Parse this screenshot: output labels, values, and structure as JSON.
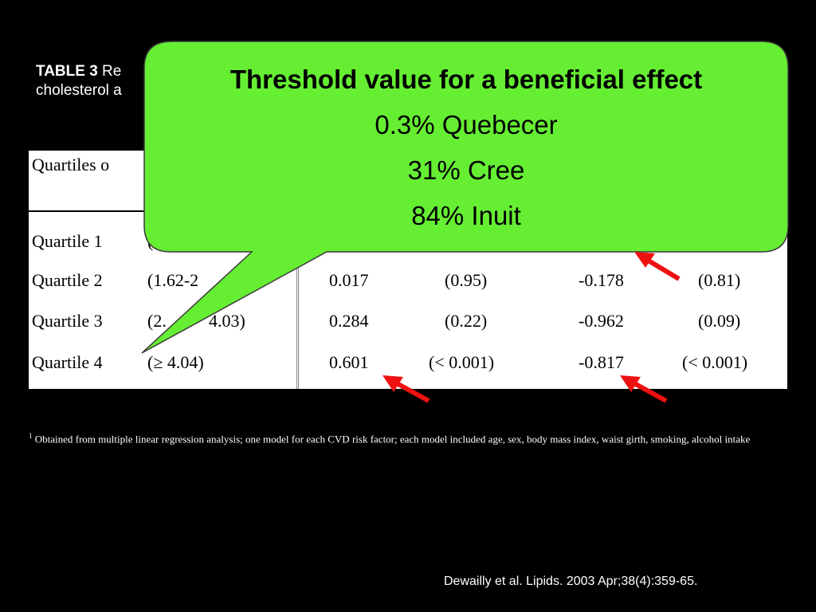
{
  "heading": {
    "label": "TABLE 3",
    "text_line1": "Re",
    "text_line2": "cholesterol a"
  },
  "table": {
    "header_partial": "Quartiles o",
    "rows": [
      {
        "label": "Quartile 1",
        "range": "(≤",
        "v1": "",
        "p1": "",
        "v2": "",
        "p2": ""
      },
      {
        "label": "Quartile 2",
        "range": "(1.62-2",
        "v1": "0.017",
        "p1": "(0.95)",
        "v2": "-0.178",
        "p2": "(0.81)"
      },
      {
        "label": "Quartile 3",
        "range": "(2.",
        "range_end": "4.03)",
        "v1": "0.284",
        "p1": "(0.22)",
        "v2": "-0.962",
        "p2": "(0.09)"
      },
      {
        "label": "Quartile 4",
        "range": "(≥ 4.04)",
        "v1": "0.601",
        "p1": "(< 0.001)",
        "v2": "-0.817",
        "p2": "(< 0.001)"
      }
    ]
  },
  "callout": {
    "title": "Threshold value for a beneficial effect",
    "lines": [
      "0.3% Quebecer",
      "31% Cree",
      "84% Inuit"
    ],
    "color": "#66ee33"
  },
  "footnote": {
    "marker": "1",
    "text": "Obtained from multiple linear regression analysis; one model for each CVD risk factor;  each model included age, sex, body mass index, waist girth, smoking, alcohol intake"
  },
  "citation": "Dewailly et al. Lipids. 2003 Apr;38(4):359-65.",
  "arrow_color": "#ee1111"
}
